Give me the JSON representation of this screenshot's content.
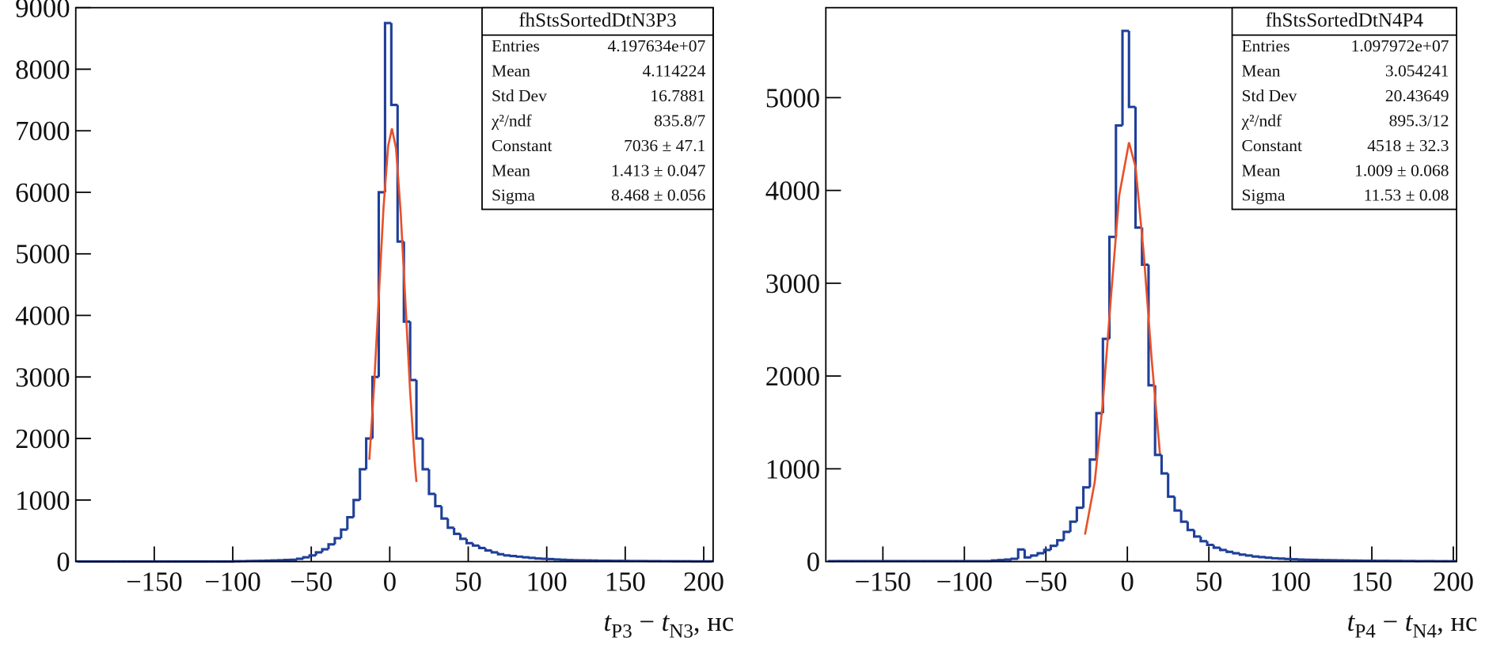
{
  "chart_data": [
    {
      "type": "histogram",
      "x_label": [
        "t",
        "P3",
        " − ",
        "t",
        "N3",
        ", нс"
      ],
      "color": "#1f3f99",
      "bins": [
        -199,
        -195,
        -191,
        -187,
        -183,
        -179,
        -175,
        -171,
        -167,
        -163,
        -159,
        -155,
        -151,
        -147,
        -143,
        -139,
        -135,
        -131,
        -127,
        -123,
        -119,
        -115,
        -111,
        -107,
        -103,
        -99,
        -95,
        -91,
        -87,
        -83,
        -79,
        -75,
        -71,
        -67,
        -63,
        -59,
        -55,
        -51,
        -47,
        -43,
        -39,
        -35,
        -31,
        -27,
        -23,
        -19,
        -15,
        -11,
        -7,
        -3,
        1,
        5,
        9,
        13,
        17,
        21,
        25,
        29,
        33,
        37,
        41,
        45,
        49,
        53,
        57,
        61,
        65,
        69,
        73,
        77,
        81,
        85,
        89,
        93,
        97,
        101,
        105,
        109,
        113,
        117,
        121,
        125,
        129,
        133,
        137,
        141,
        145,
        149,
        153,
        157,
        161,
        165,
        169,
        173,
        177,
        181,
        185,
        189,
        193,
        197,
        201,
        205
      ],
      "values": [
        2,
        2,
        2,
        2,
        2,
        2,
        2,
        2,
        2,
        2,
        2,
        2,
        2,
        2,
        2,
        2,
        2,
        2,
        2,
        2,
        2,
        2,
        2,
        2,
        2,
        5,
        6,
        8,
        10,
        12,
        15,
        18,
        22,
        26,
        30,
        45,
        70,
        100,
        150,
        200,
        280,
        380,
        520,
        720,
        1000,
        1500,
        2000,
        3000,
        6000,
        8750,
        7420,
        5200,
        3900,
        2950,
        2000,
        1500,
        1100,
        900,
        700,
        550,
        450,
        370,
        300,
        260,
        220,
        180,
        150,
        120,
        100,
        90,
        80,
        70,
        60,
        50,
        45,
        40,
        35,
        30,
        25,
        22,
        20,
        18,
        16,
        14,
        13,
        12,
        11,
        10,
        9,
        8,
        8,
        7,
        7,
        6,
        6,
        5,
        5,
        5,
        4,
        4,
        4
      ],
      "fit": {
        "color": "#e8502a",
        "x": [
          -13,
          -10,
          -7,
          -4,
          -1,
          1.4,
          4,
          7,
          10,
          13,
          16,
          17
        ],
        "values": [
          1655,
          2843,
          4293,
          5736,
          6756,
          7036,
          6715,
          5659,
          4208,
          2757,
          1595,
          1293
        ]
      },
      "xlim": [
        -200,
        206
      ],
      "xticks": [
        {
          "value": -150,
          "label": "−150"
        },
        {
          "value": -100,
          "label": "−100"
        },
        {
          "value": -50,
          "label": "−50"
        },
        0,
        50,
        100,
        150,
        200
      ],
      "ylim": [
        0,
        9000
      ],
      "yticks": [
        0,
        1000,
        2000,
        3000,
        4000,
        5000,
        6000,
        7000,
        8000,
        9000
      ],
      "stats": {
        "title": "fhStsSortedDtN3P3",
        "rows": [
          {
            "label": "Entries",
            "value": "4.197634e+07"
          },
          {
            "label": "Mean",
            "value": "4.114224"
          },
          {
            "label": "Std Dev",
            "value": "16.7881"
          },
          {
            "label": "χ²/ndf",
            "value": "835.8/7"
          },
          {
            "label": "Constant",
            "value": "7036 ± 47.1"
          },
          {
            "label": "Mean",
            "value": "1.413 ± 0.047"
          },
          {
            "label": "Sigma",
            "value": "8.468 ± 0.056"
          }
        ]
      }
    },
    {
      "type": "histogram",
      "x_label": [
        "t",
        "P4",
        " − ",
        "t",
        "N4",
        ", нс"
      ],
      "color": "#1f3f99",
      "bins": [
        -183,
        -179,
        -175,
        -171,
        -167,
        -163,
        -159,
        -155,
        -151,
        -147,
        -143,
        -139,
        -135,
        -131,
        -127,
        -123,
        -119,
        -115,
        -111,
        -107,
        -103,
        -99,
        -95,
        -91,
        -87,
        -83,
        -79,
        -75,
        -71,
        -67,
        -63,
        -59,
        -55,
        -51,
        -47,
        -43,
        -39,
        -35,
        -31,
        -27,
        -23,
        -19,
        -15,
        -11,
        -7,
        -3,
        1,
        5,
        9,
        13,
        17,
        21,
        25,
        29,
        33,
        37,
        41,
        45,
        49,
        53,
        57,
        61,
        65,
        69,
        73,
        77,
        81,
        85,
        89,
        93,
        97,
        101,
        105,
        109,
        113,
        117,
        121,
        125,
        129,
        133,
        137,
        141,
        145,
        149,
        153,
        157,
        161,
        165,
        169,
        173,
        177,
        181,
        185,
        189,
        193,
        197,
        201
      ],
      "values": [
        5,
        5,
        5,
        5,
        5,
        5,
        5,
        5,
        5,
        5,
        5,
        5,
        5,
        5,
        5,
        5,
        5,
        5,
        5,
        5,
        5,
        5,
        5,
        5,
        5,
        12,
        16,
        22,
        30,
        130,
        45,
        65,
        90,
        125,
        170,
        230,
        320,
        430,
        580,
        800,
        1100,
        1600,
        2400,
        3500,
        4700,
        5720,
        4900,
        3600,
        3200,
        1900,
        1150,
        950,
        700,
        550,
        430,
        340,
        270,
        220,
        180,
        150,
        125,
        105,
        90,
        75,
        65,
        55,
        48,
        42,
        36,
        32,
        28,
        25,
        22,
        20,
        18,
        16,
        15,
        14,
        13,
        12,
        11,
        10,
        9,
        9,
        8,
        8,
        7,
        7,
        6,
        6,
        5,
        5,
        5,
        4,
        4,
        4
      ],
      "fit": {
        "color": "#e8502a",
        "x": [
          -26,
          -20,
          -15,
          -10,
          -5,
          1,
          5,
          10,
          15,
          20
        ],
        "values": [
          291,
          860,
          1724,
          2866,
          3947,
          4518,
          4255,
          3330,
          2162,
          1162
        ]
      },
      "xlim": [
        -185,
        202
      ],
      "xticks": [
        {
          "value": -150,
          "label": "−150"
        },
        {
          "value": -100,
          "label": "−100"
        },
        {
          "value": -50,
          "label": "−50"
        },
        0,
        50,
        100,
        150,
        200
      ],
      "ylim": [
        0,
        5970
      ],
      "yticks": [
        0,
        1000,
        2000,
        3000,
        4000,
        5000
      ],
      "stats": {
        "title": "fhStsSortedDtN4P4",
        "rows": [
          {
            "label": "Entries",
            "value": "1.097972e+07"
          },
          {
            "label": "Mean",
            "value": "3.054241"
          },
          {
            "label": "Std Dev",
            "value": "20.43649"
          },
          {
            "label": "χ²/ndf",
            "value": "895.3/12"
          },
          {
            "label": "Constant",
            "value": "4518 ± 32.3"
          },
          {
            "label": "Mean",
            "value": "1.009 ± 0.068"
          },
          {
            "label": "Sigma",
            "value": "11.53 ± 0.08"
          }
        ]
      }
    }
  ]
}
